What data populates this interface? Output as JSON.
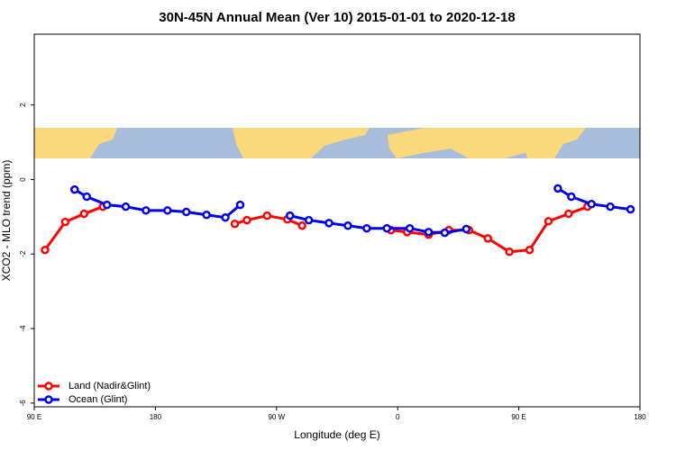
{
  "chart_data": {
    "type": "line",
    "title": "30N-45N Annual Mean (Ver 10)   2015-01-01 to 2020-12-18",
    "x_label": "Longitude (deg E)",
    "y_label": "XCO2 - MLO trend (ppm)",
    "xlim": [
      90,
      540
    ],
    "xticks": [
      {
        "value": 90,
        "label": "90 E"
      },
      {
        "value": 180,
        "label": "180"
      },
      {
        "value": 270,
        "label": "90 W"
      },
      {
        "value": 360,
        "label": "0"
      },
      {
        "value": 450,
        "label": "90 E"
      },
      {
        "value": 540,
        "label": "180"
      }
    ],
    "ylim": [
      -6.1,
      3.9
    ],
    "yticks": [
      -6,
      -4,
      -2,
      0,
      2
    ],
    "legend": "bottom-left",
    "series": [
      {
        "name": "Land (Nadir&Glint)",
        "color": "#ff0000",
        "x": [
          98,
          113,
          127,
          141,
          null,
          239,
          248,
          263,
          278,
          289,
          null,
          355,
          367,
          383,
          398,
          413,
          427,
          443,
          458,
          472,
          487,
          501
        ],
        "values": [
          -1.89,
          -1.14,
          -0.92,
          -0.73,
          null,
          -1.19,
          -1.09,
          -0.97,
          -1.07,
          -1.24,
          null,
          -1.36,
          -1.41,
          -1.48,
          -1.36,
          -1.36,
          -1.58,
          -1.94,
          -1.89,
          -1.12,
          -0.92,
          -0.73
        ]
      },
      {
        "name": "Ocean (Glint)",
        "color": "#0000ee",
        "x": [
          120,
          129,
          144,
          158,
          173,
          189,
          203,
          218,
          232,
          243,
          null,
          280,
          294,
          309,
          323,
          337,
          352,
          369,
          383,
          395,
          411,
          null,
          479,
          489,
          504,
          518,
          533
        ],
        "values": [
          -0.27,
          -0.46,
          -0.68,
          -0.73,
          -0.83,
          -0.83,
          -0.87,
          -0.95,
          -1.02,
          -0.68,
          null,
          -0.97,
          -1.09,
          -1.17,
          -1.24,
          -1.31,
          -1.31,
          -1.31,
          -1.41,
          -1.43,
          -1.33,
          null,
          -0.24,
          -0.46,
          -0.66,
          -0.73,
          -0.8
        ]
      }
    ]
  }
}
